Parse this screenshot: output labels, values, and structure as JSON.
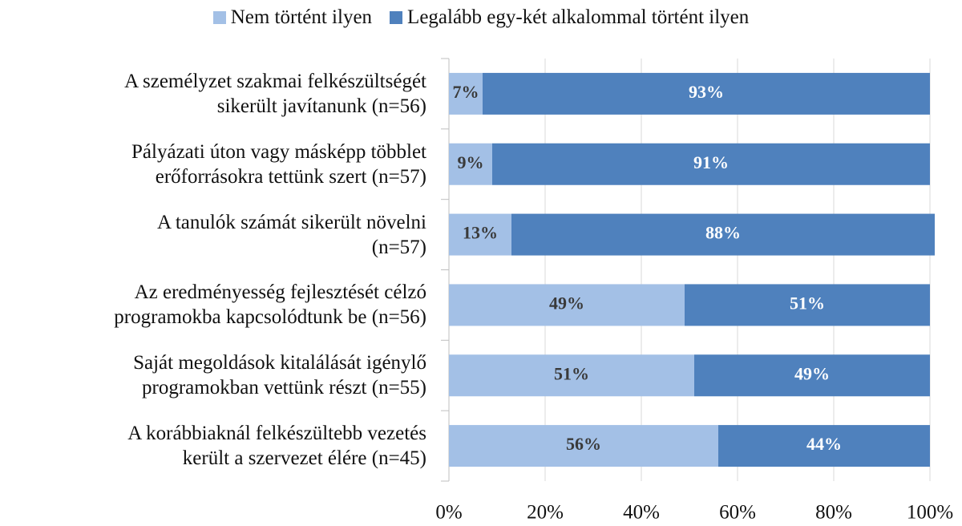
{
  "chart_data": {
    "type": "stacked_bar_horizontal",
    "categories": [
      "A személyzet szakmai felkészültségét\nsikerült javítanunk (n=56)",
      "Pályázati úton vagy másképp többlet\nerőforrásokra tettünk szert (n=57)",
      "A tanulók számát sikerült növelni\n(n=57)",
      "Az eredményesség fejlesztését célzó\nprogramokba kapcsolódtunk be (n=56)",
      "Saját megoldások kitalálását igénylő\nprogramokban vettünk részt (n=55)",
      "A korábbiaknál felkészültebb vezetés\nkerült a szervezet élére (n=45)"
    ],
    "series": [
      {
        "name": "Nem történt ilyen",
        "color": "#a3c0e6",
        "values": [
          7,
          9,
          13,
          49,
          51,
          56
        ],
        "value_labels": [
          "7%",
          "9%",
          "13%",
          "49%",
          "51%",
          "56%"
        ]
      },
      {
        "name": "Legalább egy-két alkalommal történt ilyen",
        "color": "#4f81bd",
        "values": [
          93,
          91,
          88,
          51,
          49,
          44
        ],
        "value_labels": [
          "93%",
          "91%",
          "88%",
          "51%",
          "49%",
          "44%"
        ]
      }
    ],
    "xlim": [
      0,
      100
    ],
    "xticks": [
      {
        "value": 0,
        "label": "0%"
      },
      {
        "value": 20,
        "label": "20%"
      },
      {
        "value": 40,
        "label": "40%"
      },
      {
        "value": 60,
        "label": "60%"
      },
      {
        "value": 80,
        "label": "80%"
      },
      {
        "value": 100,
        "label": "100%"
      }
    ],
    "grid": true,
    "legend": "top"
  }
}
